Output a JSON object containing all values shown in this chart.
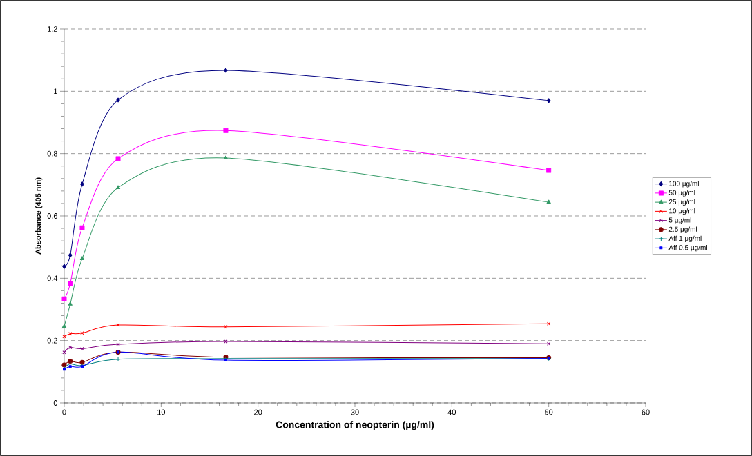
{
  "chart_data": {
    "type": "line",
    "xlabel": "Concentration of neopterin (µg/ml)",
    "ylabel": "Absorbance (405 nm)",
    "x": [
      0,
      0.62,
      1.85,
      5.56,
      16.67,
      50
    ],
    "series": [
      {
        "name": "100 µg/ml",
        "color": "#000080",
        "marker": "diamond",
        "values": [
          0.438,
          0.474,
          0.702,
          0.972,
          1.067,
          0.97
        ]
      },
      {
        "name": "50 µg/ml",
        "color": "#ff00ff",
        "marker": "square",
        "values": [
          0.334,
          0.383,
          0.562,
          0.784,
          0.874,
          0.746
        ]
      },
      {
        "name": "25 µg/ml",
        "color": "#339966",
        "marker": "triangle",
        "values": [
          0.246,
          0.317,
          0.463,
          0.691,
          0.786,
          0.644
        ]
      },
      {
        "name": "10 µg/ml",
        "color": "#ff0000",
        "marker": "cross",
        "values": [
          0.213,
          0.222,
          0.224,
          0.25,
          0.244,
          0.254
        ]
      },
      {
        "name": "5 µg/ml",
        "color": "#800080",
        "marker": "cross",
        "values": [
          0.162,
          0.178,
          0.174,
          0.188,
          0.197,
          0.19
        ]
      },
      {
        "name": "2.5 µg/ml",
        "color": "#800000",
        "marker": "circle",
        "values": [
          0.122,
          0.134,
          0.13,
          0.163,
          0.147,
          0.145
        ]
      },
      {
        "name": "Aff 1 µg/ml",
        "color": "#008080",
        "marker": "plus",
        "values": [
          0.112,
          0.125,
          0.12,
          0.14,
          0.142,
          0.142
        ]
      },
      {
        "name": "Aff 0.5 µg/ml",
        "color": "#0000ff",
        "marker": "square",
        "values": [
          0.108,
          0.117,
          0.117,
          0.163,
          0.137,
          0.143
        ]
      }
    ],
    "xlim": [
      0,
      60
    ],
    "xticks": [
      0,
      10,
      20,
      30,
      40,
      50,
      60
    ],
    "ylim": [
      0,
      1.2
    ],
    "yticks": [
      0,
      {
        "value": 0.2,
        "label": "0.2"
      },
      {
        "value": 0.4,
        "label": "0.4"
      },
      {
        "value": 0.6,
        "label": "0.6"
      },
      {
        "value": 0.8,
        "label": "0.8"
      },
      1,
      {
        "value": 1.2,
        "label": "1.2"
      }
    ],
    "grid": "y",
    "legend": "right",
    "line_style": "solid"
  }
}
